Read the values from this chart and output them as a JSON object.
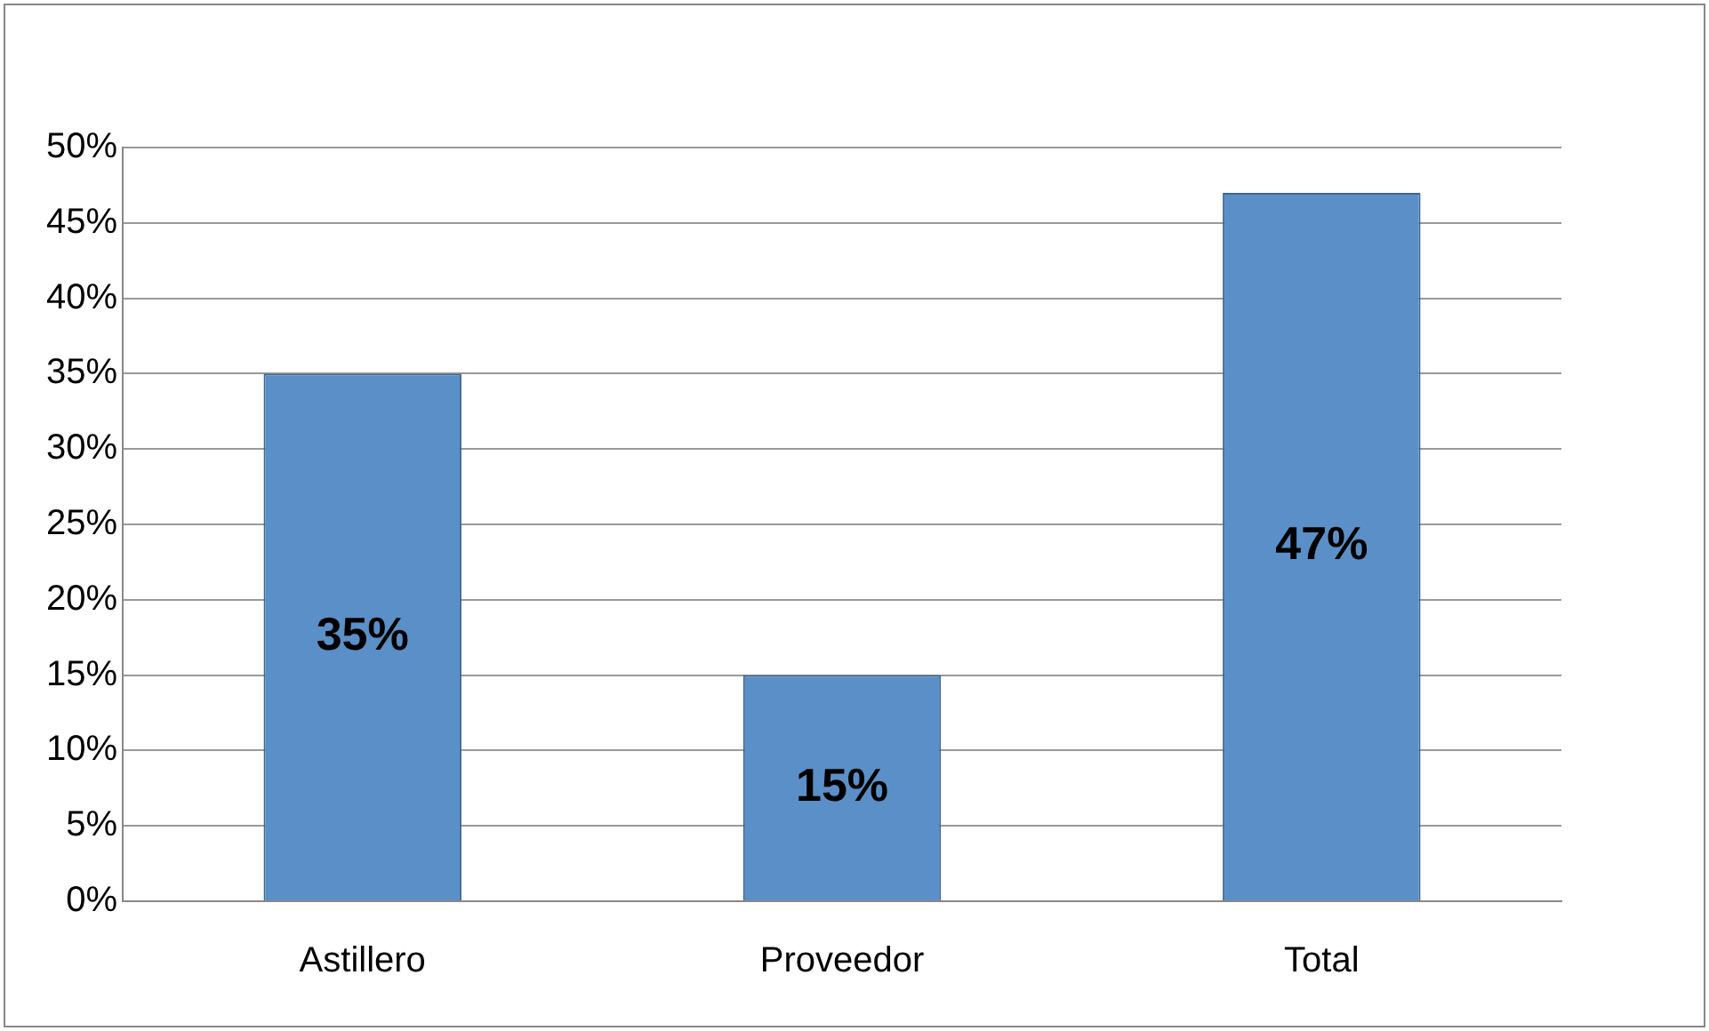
{
  "chart_data": {
    "type": "bar",
    "categories": [
      "Astillero",
      "Proveedor",
      "Total"
    ],
    "values": [
      35,
      15,
      47
    ],
    "value_labels": [
      "35%",
      "15%",
      "47%"
    ],
    "color": "#5b8fc7",
    "ylim": [
      0,
      50
    ],
    "yticks": [
      {
        "value": 0,
        "label": "0%"
      },
      {
        "value": 5,
        "label": "5%"
      },
      {
        "value": 10,
        "label": "10%"
      },
      {
        "value": 15,
        "label": "15%"
      },
      {
        "value": 20,
        "label": "20%"
      },
      {
        "value": 25,
        "label": "25%"
      },
      {
        "value": 30,
        "label": "30%"
      },
      {
        "value": 35,
        "label": "35%"
      },
      {
        "value": 40,
        "label": "40%"
      },
      {
        "value": 45,
        "label": "45%"
      },
      {
        "value": 50,
        "label": "50%"
      }
    ],
    "grid": "y",
    "legend": false
  }
}
